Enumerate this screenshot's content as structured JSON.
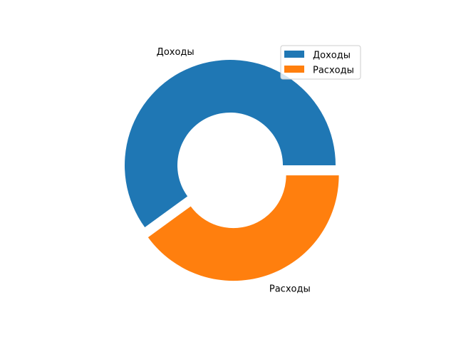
{
  "chart_data": {
    "type": "pie",
    "donut": true,
    "title": "",
    "start_angle_deg": 0,
    "direction": "counterclockwise",
    "explode": [
      0,
      0.1
    ],
    "slices": [
      {
        "label": "Доходы",
        "value": 60,
        "color": "#1f77b4"
      },
      {
        "label": "Расходы",
        "value": 40,
        "color": "#ff7f0e"
      }
    ],
    "legend": {
      "position": "top-right",
      "entries": [
        "Доходы",
        "Расходы"
      ]
    }
  }
}
